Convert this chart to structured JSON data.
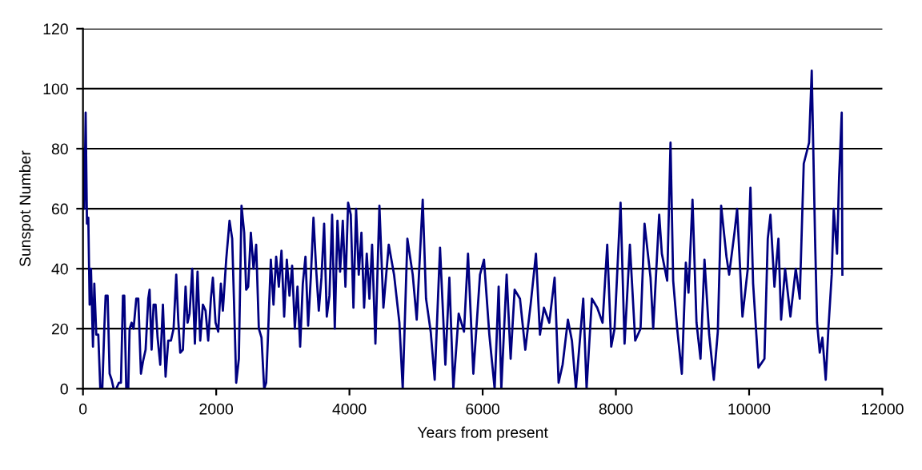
{
  "chart_data": {
    "type": "line",
    "xlabel": "Years from present",
    "ylabel": "Sunspot Number",
    "xlim": [
      0,
      12000
    ],
    "xticks": [
      0,
      2000,
      4000,
      6000,
      8000,
      10000,
      12000
    ],
    "ylim": [
      0,
      120
    ],
    "yticks": [
      0,
      20,
      40,
      60,
      80,
      100,
      120
    ],
    "grid": "y",
    "legend": false,
    "series": [
      {
        "color": "#000080",
        "x": [
          0,
          20,
          40,
          60,
          80,
          100,
          120,
          150,
          170,
          200,
          230,
          260,
          290,
          320,
          340,
          370,
          400,
          430,
          460,
          500,
          540,
          570,
          600,
          620,
          650,
          680,
          700,
          730,
          760,
          800,
          830,
          870,
          900,
          940,
          980,
          1000,
          1030,
          1060,
          1090,
          1120,
          1160,
          1200,
          1240,
          1280,
          1320,
          1360,
          1400,
          1430,
          1460,
          1500,
          1540,
          1570,
          1600,
          1640,
          1680,
          1720,
          1760,
          1800,
          1840,
          1880,
          1920,
          1950,
          1990,
          2030,
          2070,
          2100,
          2150,
          2200,
          2240,
          2280,
          2300,
          2340,
          2380,
          2420,
          2450,
          2480,
          2520,
          2560,
          2600,
          2640,
          2680,
          2720,
          2750,
          2780,
          2820,
          2860,
          2900,
          2940,
          2980,
          3020,
          3060,
          3100,
          3140,
          3180,
          3220,
          3260,
          3300,
          3340,
          3380,
          3420,
          3460,
          3500,
          3540,
          3580,
          3620,
          3660,
          3700,
          3740,
          3780,
          3820,
          3860,
          3900,
          3940,
          3980,
          4020,
          4060,
          4100,
          4140,
          4180,
          4220,
          4260,
          4300,
          4340,
          4390,
          4450,
          4510,
          4590,
          4670,
          4750,
          4800,
          4870,
          4950,
          5010,
          5100,
          5150,
          5220,
          5280,
          5360,
          5440,
          5500,
          5560,
          5640,
          5720,
          5780,
          5860,
          5960,
          6020,
          6100,
          6180,
          6240,
          6280,
          6360,
          6420,
          6480,
          6560,
          6640,
          6720,
          6800,
          6860,
          6920,
          7000,
          7080,
          7140,
          7200,
          7280,
          7340,
          7400,
          7510,
          7560,
          7640,
          7720,
          7800,
          7870,
          7930,
          7980,
          8070,
          8130,
          8210,
          8290,
          8370,
          8430,
          8520,
          8560,
          8650,
          8690,
          8770,
          8820,
          8860,
          8920,
          8990,
          9050,
          9090,
          9150,
          9210,
          9270,
          9330,
          9400,
          9470,
          9530,
          9580,
          9660,
          9700,
          9780,
          9820,
          9900,
          9980,
          10020,
          10060,
          10140,
          10230,
          10280,
          10320,
          10380,
          10440,
          10480,
          10540,
          10620,
          10700,
          10760,
          10820,
          10900,
          10940,
          10990,
          11020,
          11060,
          11100,
          11150,
          11190,
          11240,
          11270,
          11320,
          11350,
          11390,
          11400
        ],
        "values": [
          80,
          60,
          92,
          55,
          57,
          28,
          40,
          14,
          35,
          18,
          18,
          0,
          0,
          20,
          31,
          31,
          5,
          3,
          0,
          0,
          2,
          2,
          31,
          31,
          0,
          0,
          20,
          22,
          20,
          30,
          30,
          5,
          9,
          13,
          30,
          33,
          13,
          28,
          28,
          17,
          8,
          28,
          4,
          16,
          16,
          20,
          38,
          23,
          12,
          13,
          34,
          22,
          25,
          40,
          15,
          39,
          16,
          28,
          26,
          16,
          30,
          37,
          22,
          19,
          35,
          26,
          43,
          56,
          50,
          19,
          2,
          10,
          61,
          52,
          33,
          34,
          52,
          40,
          48,
          20,
          17,
          0,
          2,
          19,
          43,
          28,
          44,
          34,
          46,
          24,
          43,
          31,
          41,
          20,
          34,
          14,
          35,
          44,
          21,
          37,
          57,
          40,
          26,
          37,
          55,
          24,
          31,
          58,
          20,
          56,
          39,
          56,
          34,
          62,
          58,
          27,
          60,
          38,
          52,
          27,
          45,
          30,
          48,
          15,
          61,
          27,
          48,
          38,
          22,
          0,
          50,
          38,
          23,
          63,
          30,
          19,
          3,
          47,
          8,
          37,
          0,
          25,
          19,
          45,
          5,
          38,
          43,
          18,
          0,
          34,
          0,
          38,
          10,
          33,
          30,
          13,
          28,
          45,
          18,
          27,
          22,
          37,
          2,
          8,
          23,
          16,
          0,
          30,
          0,
          30,
          27,
          22,
          48,
          14,
          20,
          62,
          15,
          48,
          16,
          20,
          55,
          37,
          20,
          58,
          45,
          36,
          82,
          36,
          20,
          5,
          42,
          32,
          63,
          22,
          10,
          43,
          18,
          3,
          19,
          61,
          44,
          38,
          52,
          60,
          24,
          40,
          67,
          35,
          7,
          10,
          50,
          58,
          34,
          50,
          23,
          40,
          24,
          40,
          30,
          75,
          82,
          106,
          50,
          22,
          12,
          17,
          3,
          20,
          38,
          60,
          45,
          70,
          92,
          38
        ]
      }
    ]
  }
}
